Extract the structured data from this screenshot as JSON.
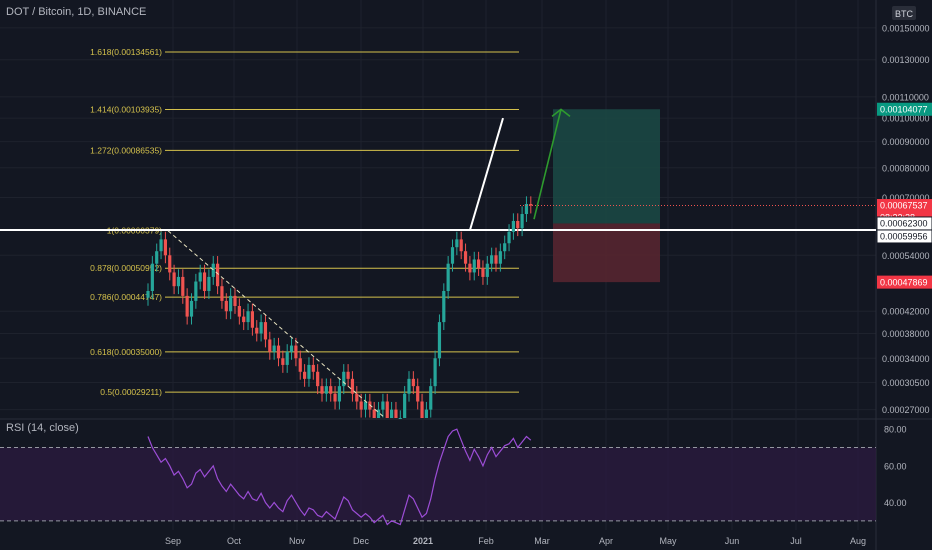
{
  "header": {
    "title": "DOT / Bitcoin, 1D, BINANCE"
  },
  "currency_badge": "BTC",
  "rsi_label": "RSI (14, close)",
  "colors": {
    "background": "#131722",
    "up": "#26a69a",
    "down": "#ef5350",
    "fib": "#d4c14c",
    "rsi": "#9c4dd6",
    "rsi_band": "#2a1a3f",
    "target_zone": "#1b4a45",
    "stop_zone": "#5b2630",
    "arrow": "#2e9b2e",
    "axis_text": "#b2b5be"
  },
  "chart_data": [
    {
      "type": "candlestick",
      "title": "DOT / Bitcoin, 1D, BINANCE",
      "x_ticks": [
        "Sep",
        "Oct",
        "Nov",
        "Dec",
        "2021",
        "Feb",
        "Mar",
        "Apr",
        "May",
        "Jun",
        "Jul",
        "Aug"
      ],
      "y_ticks": [
        "0.00150000",
        "0.00130000",
        "0.00110000",
        "0.00100000",
        "0.00090000",
        "0.00080000",
        "0.00070000",
        "0.00054000",
        "0.00042000",
        "0.00038000",
        "0.00034000",
        "0.00030500",
        "0.00027000"
      ],
      "ylim": [
        0.00026,
        0.0017
      ],
      "y_scale": "log",
      "price_labels": [
        {
          "text": "0.00104077",
          "value": 0.00104077,
          "color": "#089981"
        },
        {
          "text": "0.00067537",
          "value": 0.00067537,
          "color": "#f23645"
        },
        {
          "text": "08:22:28",
          "value": 0.00064,
          "color": "#f23645"
        },
        {
          "text": "0.00062300",
          "value": 0.000623,
          "color": "#ffffff"
        },
        {
          "text": "0.00059956",
          "value": 0.00059956,
          "color": "#ffffff"
        },
        {
          "text": "0.00047869",
          "value": 0.00047869,
          "color": "#f23645"
        }
      ],
      "fib_levels": [
        {
          "label": "1.618(0.00134561)",
          "value": 0.00134561
        },
        {
          "label": "1.414(0.00103935)",
          "value": 0.00103935
        },
        {
          "label": "1.272(0.00086535)",
          "value": 0.00086535
        },
        {
          "label": "1(0.00060379)",
          "value": 0.00060379
        },
        {
          "label": "0.878(0.00050952)",
          "value": 0.00050952
        },
        {
          "label": "0.786(0.00044747)",
          "value": 0.00044747
        },
        {
          "label": "0.618(0.00035000)",
          "value": 0.00035
        },
        {
          "label": "0.5(0.00029211)",
          "value": 0.00029211
        }
      ],
      "horizontal_line": 0.000605,
      "position": {
        "entry": 0.000623,
        "target": 0.00104077,
        "stop": 0.00047869
      },
      "candles_close": [
        0.00046,
        0.00052,
        0.00055,
        0.00058,
        0.00054,
        0.0005,
        0.00047,
        0.00049,
        0.00045,
        0.00041,
        0.00044,
        0.00048,
        0.0005,
        0.00046,
        0.00049,
        0.00052,
        0.00047,
        0.00044,
        0.00042,
        0.00045,
        0.00043,
        0.00041,
        0.0004,
        0.00042,
        0.00039,
        0.00038,
        0.0004,
        0.00037,
        0.00035,
        0.00036,
        0.00034,
        0.00033,
        0.00035,
        0.00036,
        0.00034,
        0.00032,
        0.00031,
        0.00033,
        0.00032,
        0.0003,
        0.00029,
        0.0003,
        0.00029,
        0.00028,
        0.0003,
        0.00032,
        0.00031,
        0.00029,
        0.00028,
        0.00027,
        0.00028,
        0.00027,
        0.00026,
        0.00027,
        0.00028,
        0.00026,
        0.00027,
        0.00026,
        0.00026,
        0.00029,
        0.00031,
        0.0003,
        0.00028,
        0.00026,
        0.00027,
        0.0003,
        0.00034,
        0.0004,
        0.00046,
        0.00052,
        0.00056,
        0.00058,
        0.00055,
        0.00052,
        0.0005,
        0.00053,
        0.00051,
        0.00049,
        0.00052,
        0.00054,
        0.00052,
        0.00055,
        0.00057,
        0.0006,
        0.00063,
        0.00061,
        0.00065,
        0.00068,
        0.00067537
      ]
    },
    {
      "type": "line",
      "title": "RSI (14, close)",
      "y_ticks": [
        "80.00",
        "60.00",
        "40.00"
      ],
      "ylim": [
        25,
        85
      ],
      "bands": [
        30,
        70
      ],
      "values": [
        76,
        70,
        66,
        62,
        64,
        60,
        55,
        57,
        53,
        48,
        50,
        56,
        58,
        54,
        57,
        60,
        53,
        49,
        46,
        50,
        47,
        44,
        42,
        46,
        42,
        41,
        45,
        40,
        37,
        40,
        37,
        35,
        41,
        44,
        40,
        36,
        33,
        37,
        36,
        33,
        32,
        35,
        33,
        31,
        37,
        43,
        41,
        36,
        34,
        32,
        34,
        32,
        29,
        31,
        33,
        28,
        30,
        29,
        28,
        36,
        44,
        42,
        37,
        32,
        34,
        42,
        53,
        62,
        69,
        76,
        79,
        80,
        74,
        68,
        63,
        69,
        65,
        60,
        66,
        70,
        65,
        68,
        71,
        72,
        75,
        70,
        73,
        76,
        74
      ]
    }
  ]
}
